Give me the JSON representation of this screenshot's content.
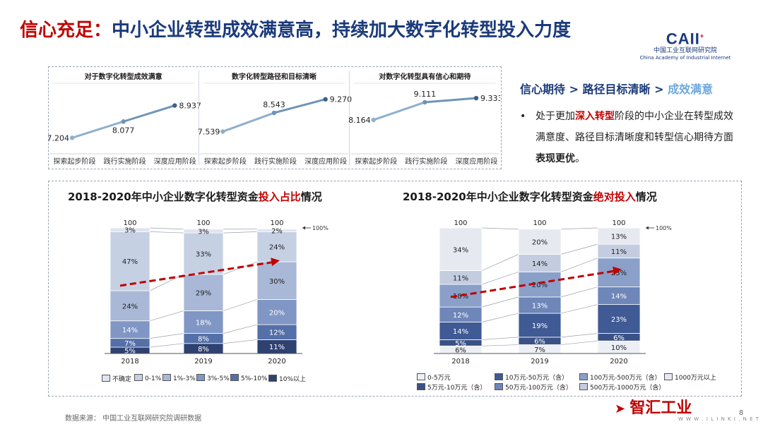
{
  "page": {
    "title_red": "信心充足：",
    "title_rest": "中小企业转型成效满意高，持续加大数字化转型投入力度",
    "logo_mark": "CAII",
    "logo_cn": "中国工业互联网研究院",
    "logo_en": "China Academy of Industrial Internet",
    "source": "数据来源：  中国工业互联网研究院调研数据",
    "page_number": "8",
    "brand": "智汇工业",
    "brand_sub": "W W W . I L I N K I . N E T"
  },
  "colors": {
    "title_red": "#c00000",
    "navy": "#1a3a7a",
    "arrow_red": "#c00000",
    "segment_colors": [
      "#dfe4ef",
      "#c6d0e3",
      "#a9b8d6",
      "#8096c4",
      "#5570a8",
      "#2e4170"
    ]
  },
  "info": {
    "heading_a": "信心期待 > 路径目标清晰 > ",
    "heading_b": "成效满意",
    "bullet": "•",
    "text_1": "处于更加",
    "text_hl": "深入转型",
    "text_2": "阶段的中小企业在转型成效满意度、路径目标清晰度和转型信心期待方面",
    "text_hl2": "表现更优",
    "text_3": "。"
  },
  "chart_data": [
    {
      "type": "line",
      "title": "对于数字化转型成效满意",
      "categories": [
        "探索起步阶段",
        "践行实施阶段",
        "深度应用阶段"
      ],
      "values": [
        7.204,
        8.077,
        8.937
      ],
      "value_labels": [
        "7.204",
        "8.077",
        "8.937"
      ],
      "ylim": [
        6.8,
        9.6
      ]
    },
    {
      "type": "line",
      "title": "数字化转型路径和目标清晰",
      "categories": [
        "探索起步阶段",
        "践行实施阶段",
        "深度应用阶段"
      ],
      "values": [
        7.539,
        8.543,
        9.27
      ],
      "value_labels": [
        "7.539",
        "8.543",
        "9.270"
      ],
      "ylim": [
        6.8,
        9.6
      ]
    },
    {
      "type": "line",
      "title": "对数字化转型具有信心和期待",
      "categories": [
        "探索起步阶段",
        "践行实施阶段",
        "深度应用阶段"
      ],
      "values": [
        8.164,
        9.111,
        9.333
      ],
      "value_labels": [
        "8.164",
        "9.111",
        "9.333"
      ],
      "ylim": [
        6.8,
        9.6
      ]
    },
    {
      "type": "bar",
      "stacked": true,
      "title_a": "2018-2020年中小企业数字化转型资金",
      "title_b": "投入占比",
      "title_c": "情况",
      "categories": [
        "2018",
        "2019",
        "2020"
      ],
      "totals": [
        "100",
        "100",
        "100"
      ],
      "total_marker": "100%",
      "series": [
        {
          "name": "10%以上",
          "values": [
            5,
            8,
            11
          ]
        },
        {
          "name": "5%-10%",
          "values": [
            7,
            8,
            12
          ]
        },
        {
          "name": "3%-5%",
          "values": [
            14,
            18,
            20
          ]
        },
        {
          "name": "1%-3%",
          "values": [
            24,
            29,
            30
          ]
        },
        {
          "name": "0-1%",
          "values": [
            47,
            33,
            24
          ]
        },
        {
          "name": "不确定",
          "values": [
            3,
            3,
            2
          ]
        }
      ],
      "legend_order": [
        "不确定",
        "0-1%",
        "1%-3%",
        "3%-5%",
        "5%-10%",
        "10%以上"
      ]
    },
    {
      "type": "bar",
      "stacked": true,
      "title_a": "2018-2020年中小企业数字化转型资金",
      "title_b": "绝对投入",
      "title_c": "情况",
      "categories": [
        "2018",
        "2019",
        "2020"
      ],
      "totals": [
        "100",
        "100",
        "100"
      ],
      "total_marker": "100%",
      "series": [
        {
          "name": "0-5万元",
          "values": [
            6,
            7,
            10
          ]
        },
        {
          "name": "5万元-10万元（含）",
          "values": [
            5,
            6,
            6
          ]
        },
        {
          "name": "10万元-50万元（含）",
          "values": [
            14,
            19,
            23
          ]
        },
        {
          "name": "50万元-100万元（含）",
          "values": [
            12,
            13,
            14
          ]
        },
        {
          "name": "100万元-500万元（含）",
          "values": [
            18,
            20,
            23
          ]
        },
        {
          "name": "500万元-1000万元（含）",
          "values": [
            11,
            14,
            11
          ]
        },
        {
          "name": "1000万元以上",
          "values": [
            34,
            20,
            13
          ]
        }
      ],
      "legend_rows": [
        [
          "0-5万元",
          "10万元-50万元（含）",
          "100万元-500万元（含）",
          "1000万元以上"
        ],
        [
          "5万元-10万元（含）",
          "50万元-100万元（含）",
          "500万元-1000万元（含）"
        ]
      ]
    }
  ]
}
